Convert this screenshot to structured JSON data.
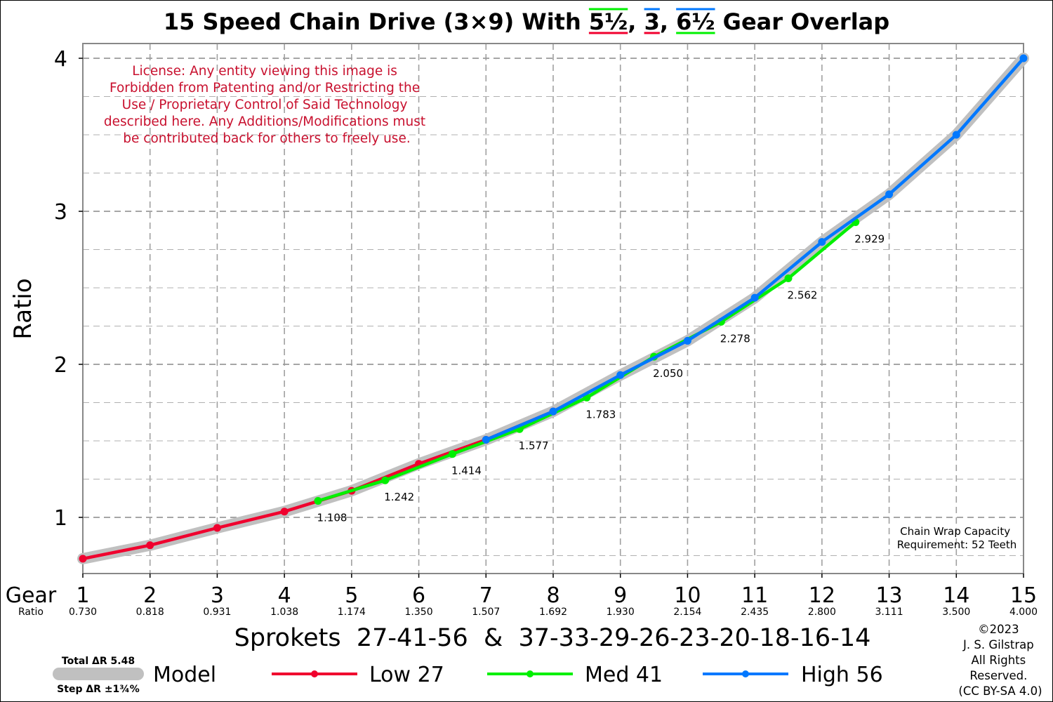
{
  "chart_data": {
    "type": "line",
    "title": {
      "pre": "15 Speed Chain Drive (3×9) With ",
      "o1": "5½",
      "sep1": ", ",
      "o2": "3",
      "sep2": ", ",
      "o3": "6½",
      "post": " Gear Overlap"
    },
    "ylabel": "Ratio",
    "xlabel": "Sprokets  27-41-56  &  37-33-29-26-23-20-18-16-14",
    "gear_row_label": "Gear",
    "ratio_row_label": "Ratio",
    "xlim": [
      1,
      15
    ],
    "ylim": [
      0.64,
      4.1
    ],
    "yticks": [
      1,
      2,
      3,
      4
    ],
    "ytick_labels": [
      "1",
      "2",
      "3",
      "4"
    ],
    "grid": true,
    "gears": [
      1,
      2,
      3,
      4,
      5,
      6,
      7,
      8,
      9,
      10,
      11,
      12,
      13,
      14,
      15
    ],
    "gear_ratios": [
      "0.730",
      "0.818",
      "0.931",
      "1.038",
      "1.174",
      "1.350",
      "1.507",
      "1.692",
      "1.930",
      "2.154",
      "2.435",
      "2.800",
      "3.111",
      "3.500",
      "4.000"
    ],
    "series": [
      {
        "name": "Model",
        "color": "#c0c0c0",
        "x": [
          1,
          2,
          3,
          4,
          5,
          6,
          7,
          8,
          9,
          10,
          11,
          12,
          13,
          14,
          15
        ],
        "y": [
          0.73,
          0.818,
          0.931,
          1.038,
          1.174,
          1.35,
          1.507,
          1.692,
          1.93,
          2.154,
          2.435,
          2.8,
          3.111,
          3.5,
          4.0
        ]
      },
      {
        "name": "Low 27",
        "color": "#f0002e",
        "x": [
          1,
          2,
          3,
          4,
          5,
          6,
          7,
          8
        ],
        "y": [
          0.73,
          0.818,
          0.931,
          1.038,
          1.174,
          1.35,
          1.507,
          1.692
        ]
      },
      {
        "name": "Med 41",
        "color": "#00f000",
        "x": [
          4.5,
          5.5,
          6.5,
          7.5,
          8.5,
          9.5,
          10.5,
          11.5,
          12.5
        ],
        "y": [
          1.108,
          1.242,
          1.414,
          1.577,
          1.783,
          2.05,
          2.278,
          2.562,
          2.929
        ]
      },
      {
        "name": "High 56",
        "color": "#0078ff",
        "x": [
          7,
          8,
          9,
          10,
          11,
          12,
          13,
          14,
          15
        ],
        "y": [
          1.507,
          1.692,
          1.93,
          2.154,
          2.435,
          2.8,
          3.111,
          3.5,
          4.0
        ]
      }
    ],
    "data_labels": [
      {
        "x": 4.5,
        "y": 1.108,
        "text": "1.108"
      },
      {
        "x": 5.5,
        "y": 1.242,
        "text": "1.242"
      },
      {
        "x": 6.5,
        "y": 1.414,
        "text": "1.414"
      },
      {
        "x": 7.5,
        "y": 1.577,
        "text": "1.577"
      },
      {
        "x": 8.5,
        "y": 1.783,
        "text": "1.783"
      },
      {
        "x": 9.5,
        "y": 2.05,
        "text": "2.050"
      },
      {
        "x": 10.5,
        "y": 2.278,
        "text": "2.278"
      },
      {
        "x": 11.5,
        "y": 2.562,
        "text": "2.562"
      },
      {
        "x": 12.5,
        "y": 2.929,
        "text": "2.929"
      }
    ],
    "legend": {
      "placement": "bottom",
      "model_top": "Total ΔR 5.48",
      "model_bottom": "Step ΔR ±1¾%",
      "entries": [
        "Model",
        "Low 27",
        "Med 41",
        "High 56"
      ]
    },
    "license_lines": [
      "License: Any entity viewing this image is",
      "Forbidden from Patenting and/or Restricting the",
      "Use / Proprietary Control of Said Technology",
      "described here. Any Additions/Modifications must",
      "be contributed back for others to freely use."
    ],
    "license_color": "#c8102e",
    "chain_wrap_lines": [
      "Chain Wrap Capacity",
      "Requirement: 52 Teeth"
    ],
    "copyright_lines": [
      "©2023",
      "J. S. Gilstrap",
      "All Rights",
      "Reserved.",
      "(CC BY-SA 4.0)"
    ]
  }
}
